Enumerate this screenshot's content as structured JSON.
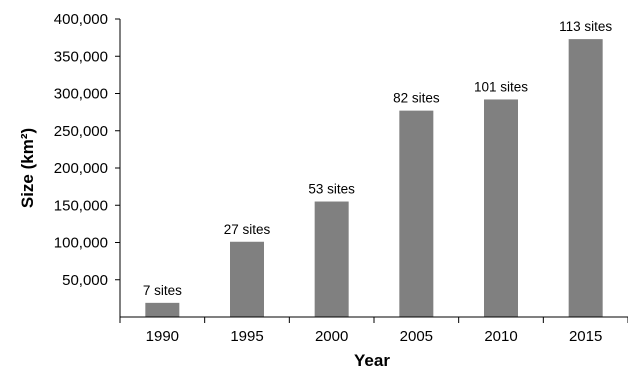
{
  "chart_data": {
    "type": "bar",
    "categories": [
      "1990",
      "1995",
      "2000",
      "2005",
      "2010",
      "2015"
    ],
    "values": [
      19000,
      101000,
      155000,
      277000,
      292000,
      373000
    ],
    "data_labels": [
      "7 sites",
      "27 sites",
      "53 sites",
      "82 sites",
      "101 sites",
      "113 sites"
    ],
    "xlabel": "Year",
    "ylabel": "Size (km²)",
    "ylim": [
      0,
      400000
    ],
    "y_ticks": [
      50000,
      100000,
      150000,
      200000,
      250000,
      300000,
      350000,
      400000
    ],
    "y_tick_labels": [
      "50,000",
      "100,000",
      "150,000",
      "200,000",
      "250,000",
      "300,000",
      "350,000",
      "400,000"
    ],
    "bar_color": "#808080",
    "grid": false,
    "legend": "none"
  }
}
